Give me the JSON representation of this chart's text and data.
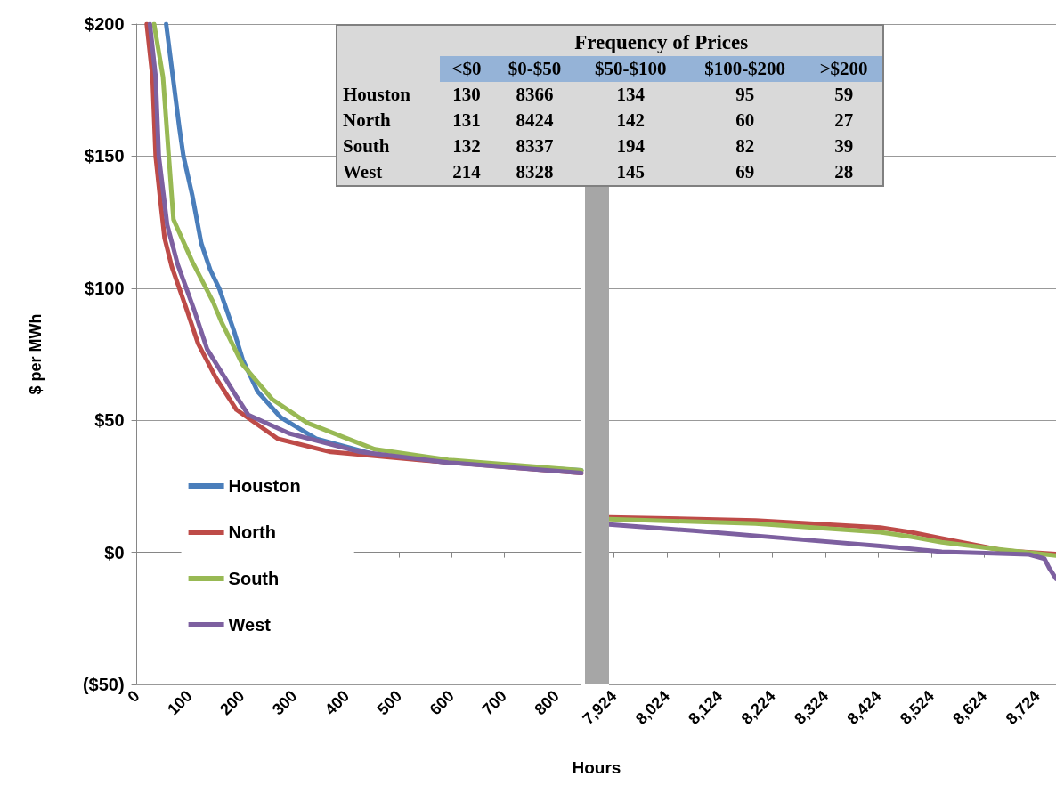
{
  "chart_data": [
    {
      "type": "line",
      "ylabel": "$ per MWh",
      "xlabel": "Hours",
      "xlim": [
        0,
        848
      ],
      "xticks": [
        0,
        100,
        200,
        300,
        400,
        500,
        600,
        700,
        800
      ],
      "ylim": [
        -50,
        200
      ],
      "yticks": [
        {
          "value": -50,
          "label": "($50)"
        },
        {
          "value": 0,
          "label": "$0"
        },
        {
          "value": 50,
          "label": "$50"
        },
        {
          "value": 100,
          "label": "$100"
        },
        {
          "value": 150,
          "label": "$150"
        },
        {
          "value": 200,
          "label": "$200"
        }
      ],
      "grid": "y",
      "legend": "left",
      "series": [
        {
          "name": "Houston",
          "color": "#4a7ebb",
          "x": [
            56,
            81,
            89,
            106,
            123,
            140,
            157,
            171,
            185,
            202,
            230,
            275,
            342,
            454,
            594,
            848
          ],
          "values": [
            200,
            161,
            150,
            135,
            117,
            107,
            100,
            92,
            84,
            73,
            61,
            51,
            43,
            37,
            34,
            31
          ]
        },
        {
          "name": "North",
          "color": "#be4b48",
          "x": [
            19,
            30,
            36,
            44,
            53,
            67,
            95,
            117,
            151,
            190,
            269,
            370,
            538,
            848
          ],
          "values": [
            200,
            180,
            150,
            135,
            119,
            108,
            92,
            79,
            66,
            54,
            43,
            38,
            35,
            30
          ]
        },
        {
          "name": "South",
          "color": "#98b954",
          "x": [
            33,
            50,
            61,
            70,
            106,
            145,
            162,
            202,
            258,
            325,
            454,
            594,
            848
          ],
          "values": [
            200,
            180,
            150,
            126,
            110,
            95,
            87,
            71,
            58,
            49,
            39,
            35,
            31
          ]
        },
        {
          "name": "West",
          "color": "#7d60a0",
          "x": [
            25,
            36,
            42,
            58,
            78,
            109,
            134,
            190,
            213,
            291,
            426,
            594,
            848
          ],
          "values": [
            200,
            180,
            150,
            124,
            109,
            92,
            77,
            59,
            52,
            45,
            38,
            34,
            30
          ]
        }
      ]
    },
    {
      "type": "line",
      "xlim": [
        7915,
        8760
      ],
      "xticks": [
        {
          "value": 7924,
          "label": "7,924"
        },
        {
          "value": 8024,
          "label": "8,024"
        },
        {
          "value": 8124,
          "label": "8,124"
        },
        {
          "value": 8224,
          "label": "8,224"
        },
        {
          "value": 8324,
          "label": "8,324"
        },
        {
          "value": 8424,
          "label": "8,424"
        },
        {
          "value": 8524,
          "label": "8,524"
        },
        {
          "value": 8624,
          "label": "8,624"
        },
        {
          "value": 8724,
          "label": "8,724"
        }
      ],
      "ylim": [
        -50,
        200
      ],
      "yticks": [
        -50,
        0,
        50,
        100,
        150,
        200
      ],
      "grid": "y",
      "tick_labels": "x",
      "series": [
        {
          "color": "#be4b48",
          "x": [
            7915,
            8192,
            8428,
            8486,
            8544,
            8662,
            8760
          ],
          "values": [
            13.3,
            12.1,
            9.4,
            7.6,
            5.3,
            0.6,
            -0.6
          ]
        },
        {
          "color": "#98b954",
          "x": [
            7915,
            8192,
            8428,
            8486,
            8544,
            8648,
            8760
          ],
          "values": [
            12.6,
            10.9,
            7.6,
            5.9,
            3.8,
            1.2,
            -1.2
          ]
        },
        {
          "color": "#7d60a0",
          "x": [
            7915,
            8075,
            8251,
            8428,
            8544,
            8709,
            8738,
            8747,
            8760
          ],
          "values": [
            10.6,
            8.2,
            5.3,
            2.4,
            0.2,
            -0.8,
            -2.4,
            -5.9,
            -10
          ]
        }
      ]
    },
    {
      "type": "heatmap",
      "title": "Frequency of Prices",
      "data_labels": true,
      "categories": [
        "<$0",
        "$0-$50",
        "$50-$100",
        "$100-$200",
        ">$200"
      ],
      "y_categories": [
        "Houston",
        "North",
        "South",
        "West"
      ],
      "cells": [
        [
          130,
          8366,
          134,
          95,
          59
        ],
        [
          131,
          8424,
          142,
          60,
          27
        ],
        [
          132,
          8337,
          194,
          82,
          39
        ],
        [
          214,
          8328,
          145,
          69,
          28
        ]
      ]
    }
  ]
}
